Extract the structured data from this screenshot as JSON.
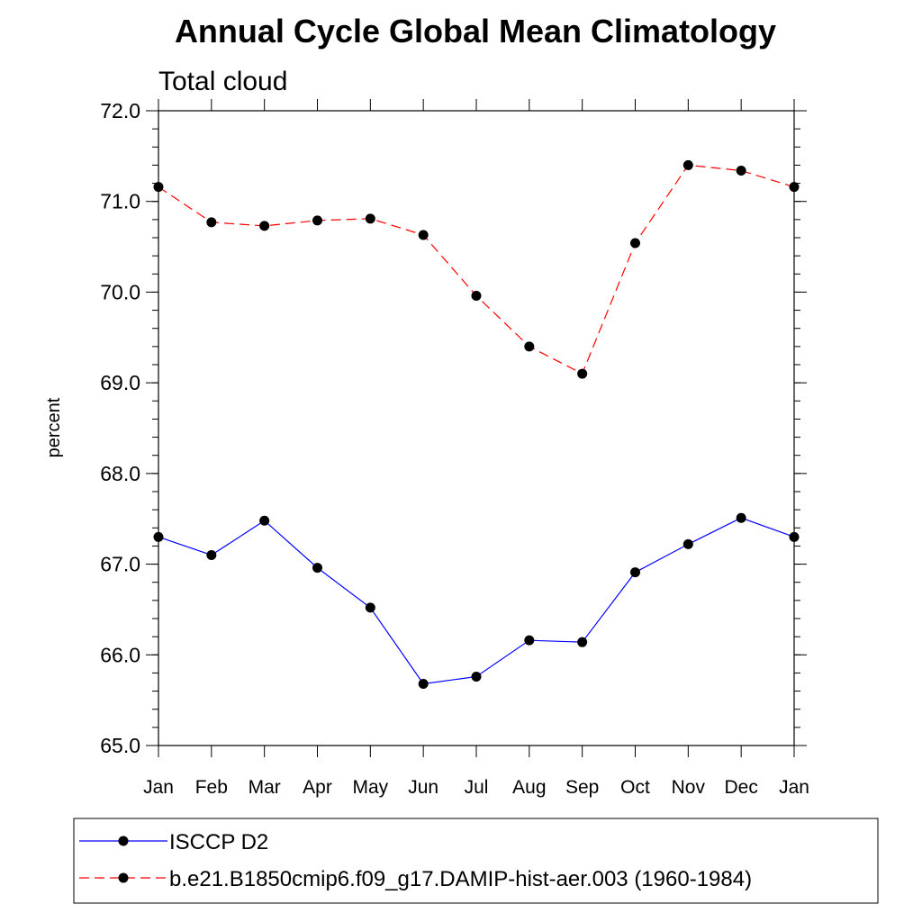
{
  "chart_data": {
    "type": "line",
    "title": "Annual Cycle Global Mean Climatology",
    "subtitle": "Total cloud",
    "xlabel": "",
    "ylabel": "percent",
    "categories": [
      "Jan",
      "Feb",
      "Mar",
      "Apr",
      "May",
      "Jun",
      "Jul",
      "Aug",
      "Sep",
      "Oct",
      "Nov",
      "Dec",
      "Jan"
    ],
    "ylim": [
      65.0,
      72.0
    ],
    "yticks": [
      "65.0",
      "66.0",
      "67.0",
      "68.0",
      "69.0",
      "70.0",
      "71.0",
      "72.0"
    ],
    "grid": false,
    "legend_position": "bottom",
    "series": [
      {
        "name": "ISCCP D2",
        "color": "#0000ff",
        "line_style": "solid",
        "marker": "filled-circle",
        "values": [
          67.3,
          67.1,
          67.48,
          66.96,
          66.52,
          65.68,
          65.76,
          66.16,
          66.14,
          66.91,
          67.22,
          67.51,
          67.3
        ]
      },
      {
        "name": "b.e21.B1850cmip6.f09_g17.DAMIP-hist-aer.003 (1960-1984)",
        "color": "#ff0000",
        "line_style": "dashed",
        "marker": "filled-circle",
        "values": [
          71.16,
          70.77,
          70.73,
          70.79,
          70.81,
          70.63,
          69.96,
          69.4,
          69.1,
          70.54,
          71.4,
          71.34,
          71.16
        ]
      }
    ]
  }
}
